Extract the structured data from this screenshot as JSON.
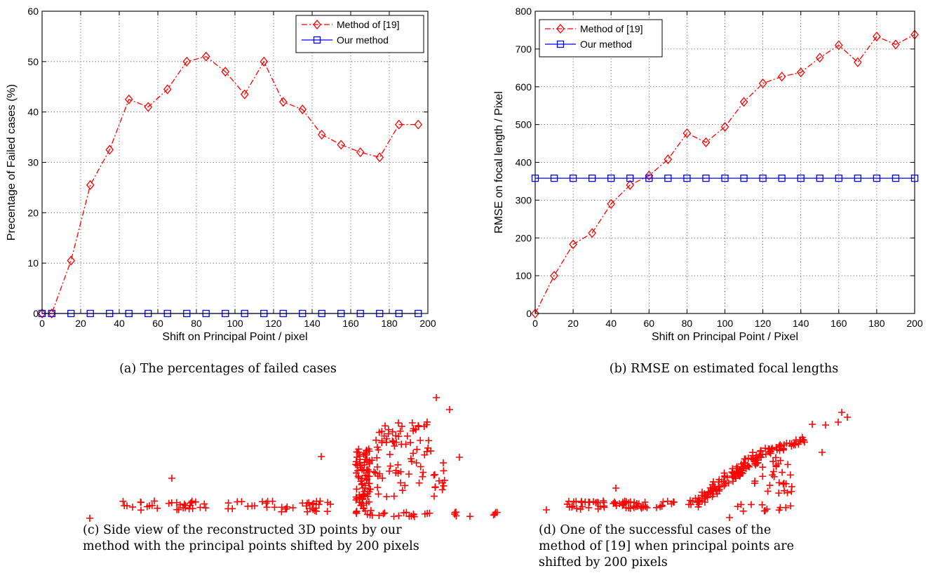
{
  "chart_data": [
    {
      "id": "a",
      "type": "line",
      "xlabel": "Shift on Principal Point / pixel",
      "ylabel": "Precentage of Failed cases (%)",
      "xlim": [
        0,
        200
      ],
      "ylim": [
        0,
        60
      ],
      "xticks": [
        "0",
        "20",
        "40",
        "60",
        "80",
        "100",
        "120",
        "140",
        "160",
        "180",
        "200"
      ],
      "yticks": [
        "0",
        "10",
        "20",
        "30",
        "40",
        "50",
        "60"
      ],
      "grid": true,
      "legend_position": "top-right",
      "caption": "(a)  The percentages of failed cases",
      "series": [
        {
          "name": "Method of [19]",
          "color": "#ff0000",
          "marker": "diamond",
          "line": "dash-dot",
          "x": [
            0,
            5,
            15,
            25,
            35,
            45,
            55,
            65,
            75,
            85,
            95,
            105,
            115,
            125,
            135,
            145,
            155,
            165,
            175,
            185,
            195
          ],
          "y": [
            0,
            0,
            10.5,
            25.5,
            32.5,
            42.5,
            41,
            44.5,
            50,
            51,
            48,
            43.5,
            50,
            42,
            40.5,
            35.5,
            33.5,
            32,
            31,
            37.5,
            37.5
          ]
        },
        {
          "name": "Our method",
          "color": "#0000ff",
          "marker": "square",
          "line": "solid",
          "x": [
            0,
            5,
            15,
            25,
            35,
            45,
            55,
            65,
            75,
            85,
            95,
            105,
            115,
            125,
            135,
            145,
            155,
            165,
            175,
            185,
            195
          ],
          "y": [
            0,
            0,
            0,
            0,
            0,
            0,
            0,
            0,
            0,
            0,
            0,
            0,
            0,
            0,
            0,
            0,
            0,
            0,
            0,
            0,
            0
          ]
        }
      ]
    },
    {
      "id": "b",
      "type": "line",
      "xlabel": "Shift on Principal Point / Pixel",
      "ylabel": "RMSE on focal length / Pixel",
      "xlim": [
        0,
        200
      ],
      "ylim": [
        0,
        800
      ],
      "xticks": [
        "0",
        "20",
        "40",
        "60",
        "80",
        "100",
        "120",
        "140",
        "160",
        "180",
        "200"
      ],
      "yticks": [
        "0",
        "100",
        "200",
        "300",
        "400",
        "500",
        "600",
        "700",
        "800"
      ],
      "grid": true,
      "legend_position": "top-left",
      "caption": "(b)  RMSE on estimated focal lengths",
      "series": [
        {
          "name": "Method of [19]",
          "color": "#ff0000",
          "marker": "diamond",
          "line": "dash-dot",
          "x": [
            0,
            10,
            20,
            30,
            40,
            50,
            60,
            70,
            80,
            90,
            100,
            110,
            120,
            130,
            140,
            150,
            160,
            170,
            180,
            190,
            200
          ],
          "y": [
            0,
            100,
            183,
            213,
            290,
            340,
            365,
            408,
            477,
            453,
            494,
            560,
            609,
            627,
            638,
            677,
            710,
            665,
            733,
            712,
            738
          ]
        },
        {
          "name": "Our method",
          "color": "#0000ff",
          "marker": "square",
          "line": "solid",
          "x": [
            0,
            10,
            20,
            30,
            40,
            50,
            60,
            70,
            80,
            90,
            100,
            110,
            120,
            130,
            140,
            150,
            160,
            170,
            180,
            190,
            200
          ],
          "y": [
            358,
            358,
            358,
            358,
            358,
            358,
            358,
            358,
            358,
            358,
            358,
            358,
            358,
            358,
            358,
            358,
            358,
            358,
            358,
            358,
            358
          ]
        }
      ]
    },
    {
      "id": "c",
      "type": "scatter",
      "color": "#ff0000",
      "marker": "plus",
      "caption_lines": [
        "(c)  Side view of the reconstructed 3D points by our",
        "method with the principal points shifted by 200 pixels"
      ]
    },
    {
      "id": "d",
      "type": "scatter",
      "color": "#ff0000",
      "marker": "plus",
      "caption_lines": [
        "(d)  One of the successful cases of the",
        "method of [19] when principal points are",
        "shifted by 200 pixels"
      ]
    }
  ]
}
